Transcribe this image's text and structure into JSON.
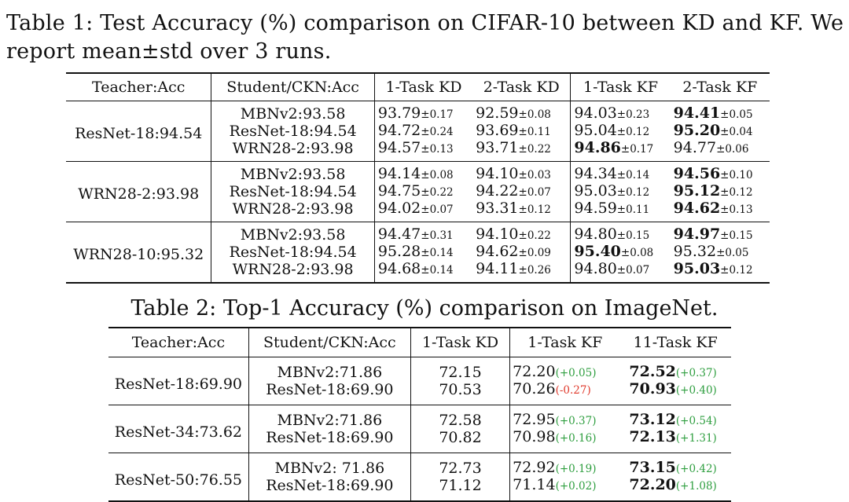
{
  "table1": {
    "caption_line1": "Table 1: Test Accuracy (%) comparison on CIFAR-10 between KD and KF. We",
    "caption_line2": "report mean±std over 3 runs.",
    "headers": [
      "Teacher:Acc",
      "Student/CKN:Acc",
      "1-Task KD",
      "2-Task KD",
      "1-Task KF",
      "2-Task KF"
    ],
    "groups": [
      {
        "teacher": "ResNet-18:94.54",
        "rows": [
          {
            "student": "MBNv2:93.58",
            "cells": [
              {
                "v": "93.79",
                "s": "±0.17",
                "b": false
              },
              {
                "v": "92.59",
                "s": "±0.08",
                "b": false
              },
              {
                "v": "94.03",
                "s": "±0.23",
                "b": false
              },
              {
                "v": "94.41",
                "s": "±0.05",
                "b": true
              }
            ]
          },
          {
            "student": "ResNet-18:94.54",
            "cells": [
              {
                "v": "94.72",
                "s": "±0.24",
                "b": false
              },
              {
                "v": "93.69",
                "s": "±0.11",
                "b": false
              },
              {
                "v": "95.04",
                "s": "±0.12",
                "b": false
              },
              {
                "v": "95.20",
                "s": "±0.04",
                "b": true
              }
            ]
          },
          {
            "student": "WRN28-2:93.98",
            "cells": [
              {
                "v": "94.57",
                "s": "±0.13",
                "b": false
              },
              {
                "v": "93.71",
                "s": "±0.22",
                "b": false
              },
              {
                "v": "94.86",
                "s": "±0.17",
                "b": true
              },
              {
                "v": "94.77",
                "s": "±0.06",
                "b": false
              }
            ]
          }
        ]
      },
      {
        "teacher": "WRN28-2:93.98",
        "rows": [
          {
            "student": "MBNv2:93.58",
            "cells": [
              {
                "v": "94.14",
                "s": "±0.08",
                "b": false
              },
              {
                "v": "94.10",
                "s": "±0.03",
                "b": false
              },
              {
                "v": "94.34",
                "s": "±0.14",
                "b": false
              },
              {
                "v": "94.56",
                "s": "±0.10",
                "b": true
              }
            ]
          },
          {
            "student": "ResNet-18:94.54",
            "cells": [
              {
                "v": "94.75",
                "s": "±0.22",
                "b": false
              },
              {
                "v": "94.22",
                "s": "±0.07",
                "b": false
              },
              {
                "v": "95.03",
                "s": "±0.12",
                "b": false
              },
              {
                "v": "95.12",
                "s": "±0.12",
                "b": true
              }
            ]
          },
          {
            "student": "WRN28-2:93.98",
            "cells": [
              {
                "v": "94.02",
                "s": "±0.07",
                "b": false
              },
              {
                "v": "93.31",
                "s": "±0.12",
                "b": false
              },
              {
                "v": "94.59",
                "s": "±0.11",
                "b": false
              },
              {
                "v": "94.62",
                "s": "±0.13",
                "b": true
              }
            ]
          }
        ]
      },
      {
        "teacher": "WRN28-10:95.32",
        "rows": [
          {
            "student": "MBNv2:93.58",
            "cells": [
              {
                "v": "94.47",
                "s": "±0.31",
                "b": false
              },
              {
                "v": "94.10",
                "s": "±0.22",
                "b": false
              },
              {
                "v": "94.80",
                "s": "±0.15",
                "b": false
              },
              {
                "v": "94.97",
                "s": "±0.15",
                "b": true
              }
            ]
          },
          {
            "student": "ResNet-18:94.54",
            "cells": [
              {
                "v": "95.28",
                "s": "±0.14",
                "b": false
              },
              {
                "v": "94.62",
                "s": "±0.09",
                "b": false
              },
              {
                "v": "95.40",
                "s": "±0.08",
                "b": true
              },
              {
                "v": "95.32",
                "s": "±0.05",
                "b": false
              }
            ]
          },
          {
            "student": "WRN28-2:93.98",
            "cells": [
              {
                "v": "94.68",
                "s": "±0.14",
                "b": false
              },
              {
                "v": "94.11",
                "s": "±0.26",
                "b": false
              },
              {
                "v": "94.80",
                "s": "±0.07",
                "b": false
              },
              {
                "v": "95.03",
                "s": "±0.12",
                "b": true
              }
            ]
          }
        ]
      }
    ]
  },
  "table2": {
    "caption": "Table 2: Top-1 Accuracy (%) comparison on ImageNet.",
    "headers": [
      "Teacher:Acc",
      "Student/CKN:Acc",
      "1-Task KD",
      "1-Task KF",
      "11-Task KF"
    ],
    "groups": [
      {
        "teacher": "ResNet-18:69.90",
        "rows": [
          {
            "student": "MBNv2:71.86",
            "kd": "72.15",
            "kf1": {
              "v": "72.20",
              "d": "(+0.05)",
              "pos": true,
              "b": false
            },
            "kf11": {
              "v": "72.52",
              "d": "(+0.37)",
              "pos": true,
              "b": true
            }
          },
          {
            "student": "ResNet-18:69.90",
            "kd": "70.53",
            "kf1": {
              "v": "70.26",
              "d": "(-0.27)",
              "pos": false,
              "b": false
            },
            "kf11": {
              "v": "70.93",
              "d": "(+0.40)",
              "pos": true,
              "b": true
            }
          }
        ]
      },
      {
        "teacher": "ResNet-34:73.62",
        "rows": [
          {
            "student": "MBNv2:71.86",
            "kd": "72.58",
            "kf1": {
              "v": "72.95",
              "d": "(+0.37)",
              "pos": true,
              "b": false
            },
            "kf11": {
              "v": "73.12",
              "d": "(+0.54)",
              "pos": true,
              "b": true
            }
          },
          {
            "student": "ResNet-18:69.90",
            "kd": "70.82",
            "kf1": {
              "v": "70.98",
              "d": "(+0.16)",
              "pos": true,
              "b": false
            },
            "kf11": {
              "v": "72.13",
              "d": "(+1.31)",
              "pos": true,
              "b": true
            }
          }
        ]
      },
      {
        "teacher": "ResNet-50:76.55",
        "rows": [
          {
            "student": "MBNv2: 71.86",
            "kd": "72.73",
            "kf1": {
              "v": "72.92",
              "d": "(+0.19)",
              "pos": true,
              "b": false
            },
            "kf11": {
              "v": "73.15",
              "d": "(+0.42)",
              "pos": true,
              "b": true
            }
          },
          {
            "student": "ResNet-18:69.90",
            "kd": "71.12",
            "kf1": {
              "v": "71.14",
              "d": "(+0.02)",
              "pos": true,
              "b": false
            },
            "kf11": {
              "v": "72.20",
              "d": "(+1.08)",
              "pos": true,
              "b": true
            }
          }
        ]
      }
    ]
  }
}
